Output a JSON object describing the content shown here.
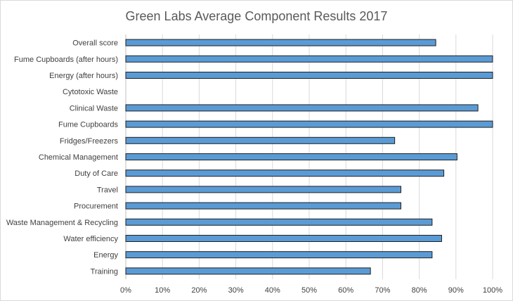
{
  "chart_data": {
    "type": "bar",
    "orientation": "horizontal",
    "title": "Green Labs Average Component Results 2017",
    "xlabel": "",
    "ylabel": "",
    "xlim": [
      0,
      100
    ],
    "x_ticks": [
      "0%",
      "10%",
      "20%",
      "30%",
      "40%",
      "50%",
      "60%",
      "70%",
      "80%",
      "90%",
      "100%"
    ],
    "grid": true,
    "legend": "none",
    "bar_color": "#5b9bd5",
    "categories": [
      "Overall score",
      "Fume Cupboards (after hours)",
      "Energy (after hours)",
      "Cytotoxic Waste",
      "Clinical Waste",
      "Fume Cupboards",
      "Fridges/Freezers",
      "Chemical Management",
      "Duty of Care",
      "Travel",
      "Procurement",
      "Waste Management & Recycling",
      "Water efficiency",
      "Energy",
      "Training"
    ],
    "values": [
      84.5,
      100,
      100,
      0,
      96,
      100,
      73.3,
      90.3,
      86.7,
      75,
      75,
      83.5,
      86.1,
      83.5,
      66.7
    ]
  }
}
